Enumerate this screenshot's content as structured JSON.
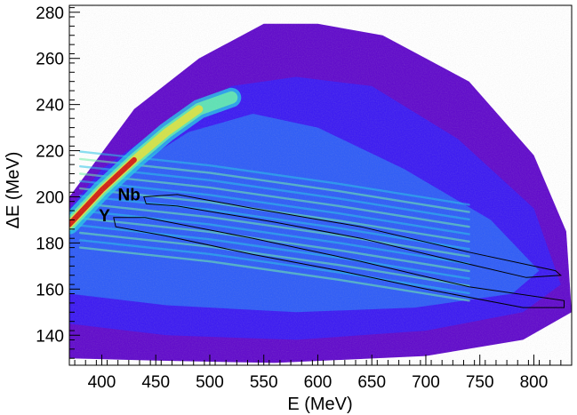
{
  "chart_data": {
    "type": "heatmap",
    "title": "",
    "xlabel": "E (MeV)",
    "ylabel": "ΔE (MeV)",
    "xlim": [
      370,
      835
    ],
    "ylim": [
      127,
      283
    ],
    "x_ticks": [
      400,
      450,
      500,
      550,
      600,
      650,
      700,
      750,
      800
    ],
    "y_ticks": [
      140,
      160,
      180,
      200,
      220,
      240,
      260,
      280
    ],
    "x_tick_labels": [
      "400",
      "450",
      "500",
      "550",
      "600",
      "650",
      "700",
      "750",
      "800"
    ],
    "y_tick_labels": [
      "140",
      "160",
      "180",
      "200",
      "220",
      "240",
      "260",
      "280"
    ],
    "colormap": [
      "#5a00c8",
      "#3b1ff5",
      "#2f6af7",
      "#27c4e8",
      "#6ef2a8",
      "#e8e23a",
      "#f08a1e",
      "#d21010"
    ],
    "ridge": [
      {
        "x": 370,
        "y": 188
      },
      {
        "x": 400,
        "y": 203
      },
      {
        "x": 430,
        "y": 216
      },
      {
        "x": 460,
        "y": 228
      },
      {
        "x": 490,
        "y": 238
      },
      {
        "x": 520,
        "y": 243
      }
    ],
    "gates": [
      {
        "label": "Nb",
        "polygon": [
          [
            439,
            200
          ],
          [
            470,
            201
          ],
          [
            540,
            195
          ],
          [
            640,
            187
          ],
          [
            740,
            176
          ],
          [
            820,
            168
          ],
          [
            825,
            166
          ],
          [
            793,
            165
          ],
          [
            720,
            173
          ],
          [
            640,
            182
          ],
          [
            560,
            189
          ],
          [
            470,
            196
          ],
          [
            441,
            197
          ]
        ]
      },
      {
        "label": "Y",
        "polygon": [
          [
            411,
            191
          ],
          [
            440,
            191
          ],
          [
            540,
            182
          ],
          [
            640,
            172
          ],
          [
            740,
            161
          ],
          [
            828,
            155
          ],
          [
            828,
            152
          ],
          [
            790,
            152
          ],
          [
            700,
            160
          ],
          [
            620,
            168
          ],
          [
            540,
            175
          ],
          [
            460,
            183
          ],
          [
            413,
            187
          ]
        ]
      }
    ]
  }
}
